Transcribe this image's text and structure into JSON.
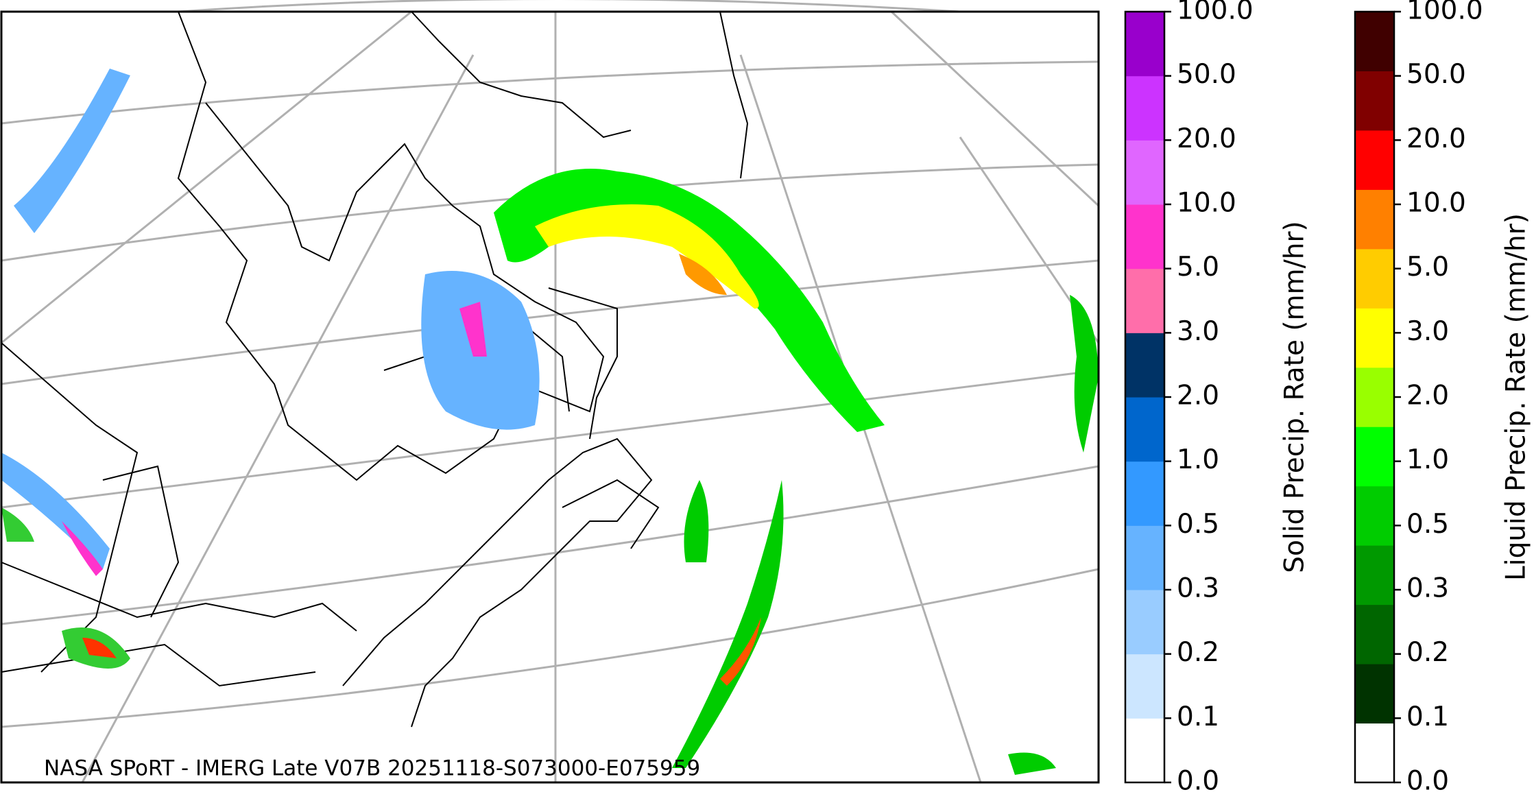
{
  "map": {
    "credit": "NASA SPoRT - IMERG Late V07B 20251118-S073000-E075959"
  },
  "colorbars": [
    {
      "label": "Solid Precip. Rate (mm/hr)",
      "ticks": [
        "0.0",
        "0.1",
        "0.2",
        "0.3",
        "0.5",
        "1.0",
        "2.0",
        "3.0",
        "5.0",
        "10.0",
        "20.0",
        "50.0",
        "100.0"
      ],
      "colors": [
        "#ffffff",
        "#cce6ff",
        "#99ccff",
        "#66b3ff",
        "#3399ff",
        "#0066cc",
        "#003366",
        "#ff6eaa",
        "#ff33cc",
        "#e066ff",
        "#cc33ff",
        "#9900cc"
      ]
    },
    {
      "label": "Liquid Precip. Rate (mm/hr)",
      "ticks": [
        "0.0",
        "0.1",
        "0.2",
        "0.3",
        "0.5",
        "1.0",
        "2.0",
        "3.0",
        "5.0",
        "10.0",
        "20.0",
        "50.0",
        "100.0"
      ],
      "colors": [
        "#ffffff",
        "#003300",
        "#006600",
        "#009900",
        "#00cc00",
        "#00ff00",
        "#99ff00",
        "#ffff00",
        "#ffcc00",
        "#ff8000",
        "#ff0000",
        "#800000",
        "#400000"
      ]
    }
  ]
}
